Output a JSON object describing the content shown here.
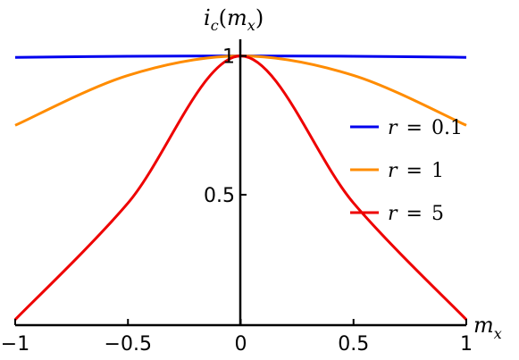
{
  "chart_data": {
    "type": "line",
    "xlabel": "m",
    "xlabel_sub": "x",
    "ylabel": "i",
    "ylabel_sub": "c",
    "ylabel_arg_open": "(",
    "ylabel_arg": "m",
    "ylabel_arg_sub": "x",
    "ylabel_arg_close": ")",
    "xlim": [
      -1,
      1
    ],
    "ylim": [
      0.03,
      1.06
    ],
    "x_ticks": [
      -1,
      -0.5,
      0,
      0.5,
      1
    ],
    "x_tick_labels": [
      "−1",
      "−0.5",
      "0",
      "0.5",
      "1"
    ],
    "y_ticks": [
      0.5,
      1
    ],
    "y_tick_labels": [
      "0.5",
      "1"
    ],
    "grid": false,
    "legend_position": "right",
    "series": [
      {
        "name": "r = 0.1",
        "legend_var": "r",
        "legend_eq": "=",
        "legend_val": "0.1",
        "r": 0.1,
        "color": "#0000ee",
        "x": [
          -1,
          -0.5,
          0,
          0.5,
          1
        ],
        "y": [
          0.995,
          0.999,
          1.0,
          0.999,
          0.995
        ]
      },
      {
        "name": "r = 1",
        "legend_var": "r",
        "legend_eq": "=",
        "legend_val": "1",
        "r": 1,
        "color": "#ff8c00",
        "x": [
          -1,
          -0.5,
          0,
          0.5,
          1
        ],
        "y": [
          0.75,
          0.93,
          1.0,
          0.93,
          0.75
        ]
      },
      {
        "name": "r = 5",
        "legend_var": "r",
        "legend_eq": "=",
        "legend_val": "5",
        "r": 5,
        "color": "#ee0000",
        "x": [
          -1,
          -0.5,
          0,
          0.5,
          1
        ],
        "y": [
          0.05,
          0.47,
          1.0,
          0.47,
          0.05
        ]
      }
    ]
  }
}
